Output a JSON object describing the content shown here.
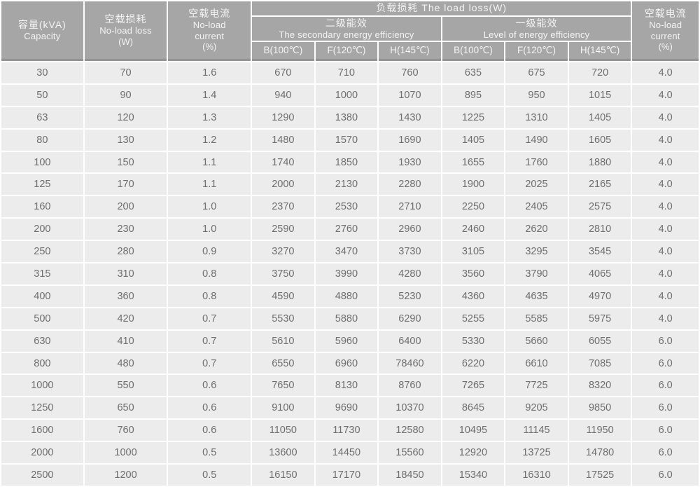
{
  "table": {
    "title_semantic": "transformer no-load and load loss specification table",
    "header": {
      "capacity": [
        "容量(kVA)",
        "Capacity"
      ],
      "no_load_loss": [
        "空载损耗",
        "No-load loss",
        "(W)"
      ],
      "no_load_current_left": [
        "空载电流",
        "No-load",
        "current",
        "(%)"
      ],
      "load_loss_title": "负载损耗 The load loss(W)",
      "secondary_group": [
        "二级能效",
        "The secondary energy efficiency"
      ],
      "level1_group": [
        "一级能效",
        "Level of energy efficiency"
      ],
      "temp_cols": [
        "B(100℃)",
        "F(120℃)",
        "H(145℃)",
        "B(100℃)",
        "F(120℃)",
        "H(145℃)"
      ],
      "no_load_current_right": [
        "空载电流",
        "No-load",
        "current",
        "(%)"
      ]
    },
    "col_keys": [
      "capacity-kva",
      "no-load-loss-w",
      "no-load-current-pct",
      "secondary-b100",
      "secondary-f120",
      "secondary-h145",
      "level1-b100",
      "level1-f120",
      "level1-h145",
      "no-load-current-pct-right"
    ],
    "rows": [
      [
        "30",
        "70",
        "1.6",
        "670",
        "710",
        "760",
        "635",
        "675",
        "720",
        "4.0"
      ],
      [
        "50",
        "90",
        "1.4",
        "940",
        "1000",
        "1070",
        "895",
        "950",
        "1015",
        "4.0"
      ],
      [
        "63",
        "120",
        "1.3",
        "1290",
        "1380",
        "1430",
        "1225",
        "1310",
        "1405",
        "4.0"
      ],
      [
        "80",
        "130",
        "1.2",
        "1480",
        "1570",
        "1690",
        "1405",
        "1490",
        "1605",
        "4.0"
      ],
      [
        "100",
        "150",
        "1.1",
        "1740",
        "1850",
        "1930",
        "1655",
        "1760",
        "1880",
        "4.0"
      ],
      [
        "125",
        "170",
        "1.1",
        "2000",
        "2130",
        "2280",
        "1900",
        "2025",
        "2165",
        "4.0"
      ],
      [
        "160",
        "200",
        "1.0",
        "2370",
        "2530",
        "2710",
        "2250",
        "2405",
        "2575",
        "4.0"
      ],
      [
        "200",
        "230",
        "1.0",
        "2590",
        "2760",
        "2960",
        "2460",
        "2620",
        "2810",
        "4.0"
      ],
      [
        "250",
        "280",
        "0.9",
        "3270",
        "3470",
        "3730",
        "3105",
        "3295",
        "3545",
        "4.0"
      ],
      [
        "315",
        "310",
        "0.8",
        "3750",
        "3990",
        "4280",
        "3560",
        "3790",
        "4065",
        "4.0"
      ],
      [
        "400",
        "360",
        "0.8",
        "4590",
        "4880",
        "5230",
        "4360",
        "4635",
        "4970",
        "4.0"
      ],
      [
        "500",
        "420",
        "0.7",
        "5530",
        "5880",
        "6290",
        "5255",
        "5585",
        "5975",
        "4.0"
      ],
      [
        "630",
        "410",
        "0.7",
        "5610",
        "5960",
        "6400",
        "5330",
        "5660",
        "6055",
        "6.0"
      ],
      [
        "800",
        "480",
        "0.7",
        "6550",
        "6960",
        "78460",
        "6220",
        "6610",
        "7085",
        "6.0"
      ],
      [
        "1000",
        "550",
        "0.6",
        "7650",
        "8130",
        "8760",
        "7265",
        "7725",
        "8320",
        "6.0"
      ],
      [
        "1250",
        "650",
        "0.6",
        "9100",
        "9690",
        "10370",
        "8645",
        "9205",
        "9850",
        "6.0"
      ],
      [
        "1600",
        "760",
        "0.6",
        "11050",
        "11730",
        "12580",
        "10495",
        "11145",
        "11950",
        "6.0"
      ],
      [
        "2000",
        "1000",
        "0.5",
        "13600",
        "14450",
        "15560",
        "12920",
        "13725",
        "14780",
        "6.0"
      ],
      [
        "2500",
        "1200",
        "0.5",
        "16150",
        "17170",
        "18450",
        "15340",
        "16310",
        "17525",
        "6.0"
      ]
    ]
  },
  "colors": {
    "header_bg": "#a6a6a6",
    "header_text": "#f4f4f4",
    "header_bottom_rule": "#929292",
    "cell_bg": "#ececec",
    "cell_text": "#6e6e6e",
    "grid_gap": "#ffffff"
  }
}
